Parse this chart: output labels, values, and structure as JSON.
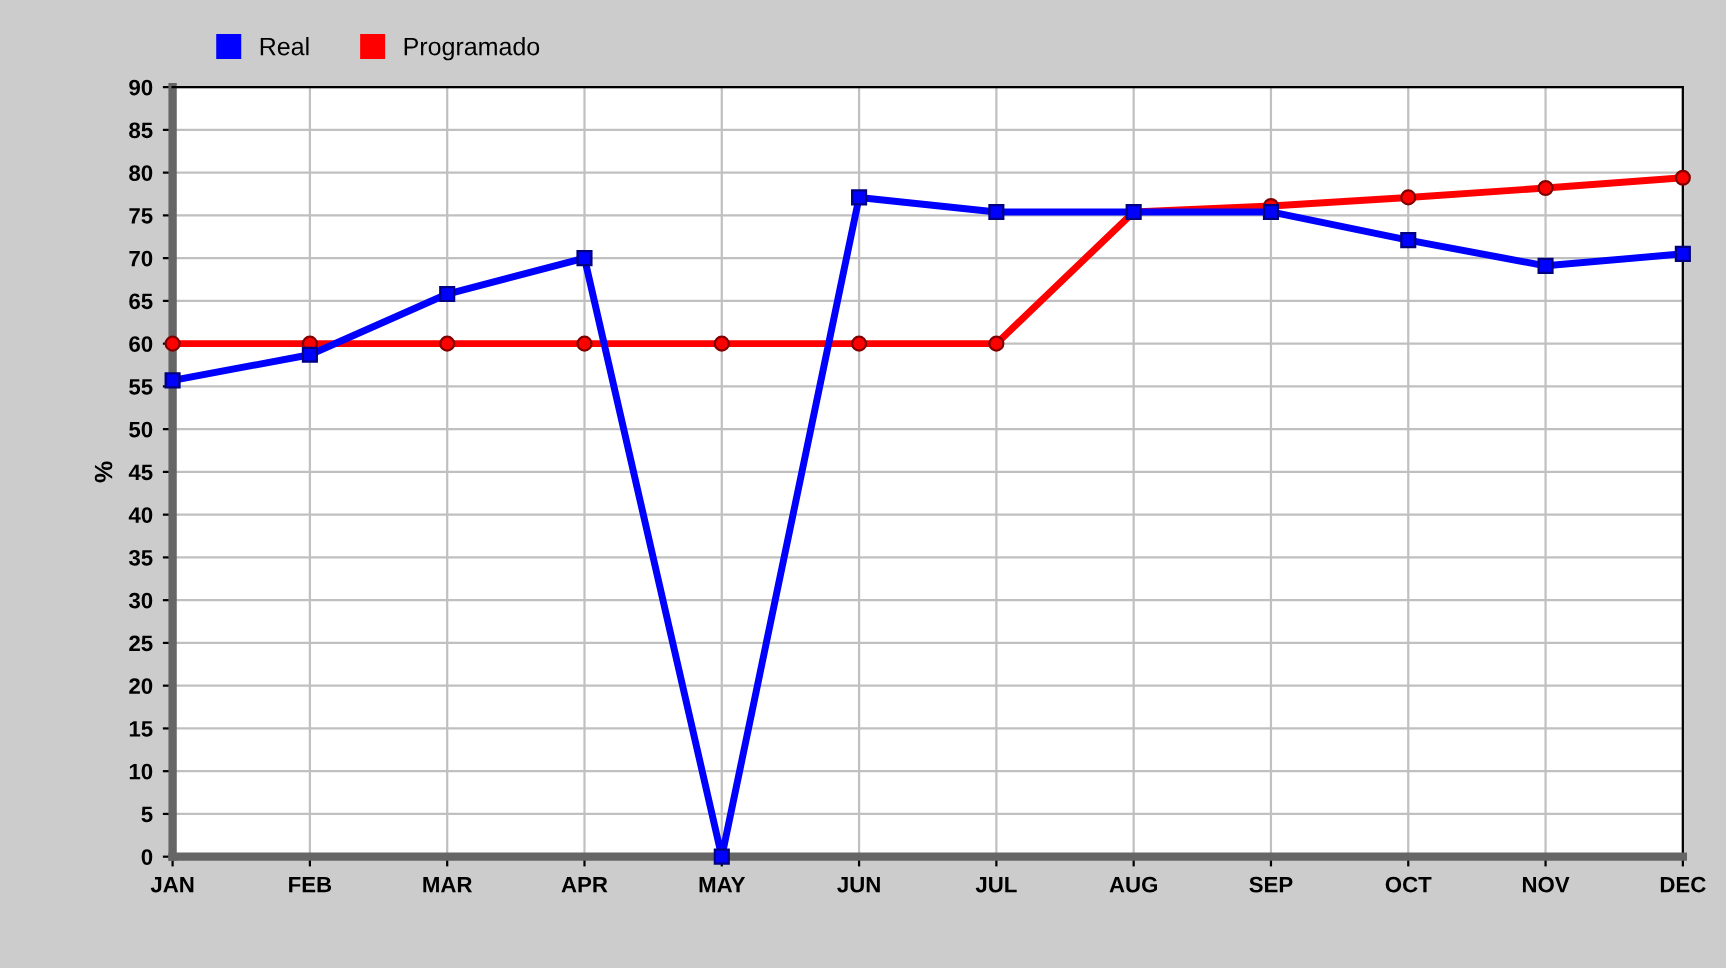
{
  "chart_data": {
    "type": "line",
    "ylabel": "%",
    "categories": [
      "JAN",
      "FEB",
      "MAR",
      "APR",
      "MAY",
      "JUN",
      "JUL",
      "AUG",
      "SEP",
      "OCT",
      "NOV",
      "DEC"
    ],
    "series": [
      {
        "name": "Real",
        "color": "#0000ff",
        "marker": "square",
        "values": [
          55.7,
          58.7,
          65.8,
          70,
          0,
          77.1,
          75.4,
          75.4,
          75.4,
          72.1,
          69.1,
          70.5
        ]
      },
      {
        "name": "Programado",
        "color": "#ff0000",
        "marker": "circle",
        "values": [
          60,
          60,
          60,
          60,
          60,
          60,
          60,
          75.4,
          76.1,
          77.1,
          78.2,
          79.4
        ]
      }
    ],
    "ylim": [
      0,
      90
    ],
    "yticks": [
      0,
      5,
      10,
      15,
      20,
      25,
      30,
      35,
      40,
      45,
      50,
      55,
      60,
      65,
      70,
      75,
      80,
      85,
      90
    ],
    "grid": true,
    "legend": "top left",
    "line_style": "solid"
  }
}
